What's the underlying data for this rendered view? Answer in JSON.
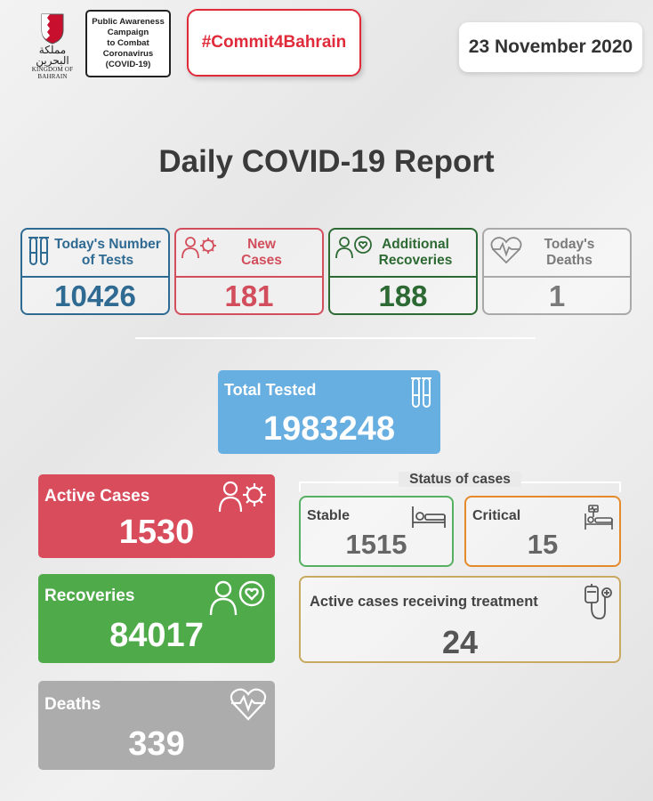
{
  "header": {
    "emblem_arabic": "مملكة البحرين",
    "emblem_english": "KINGDOM OF BAHRAIN",
    "campaign_text": "Public Awareness\nCampaign\nto Combat\nCoronavirus\n(COVID-19)",
    "hashtag": "#Commit4Bahrain",
    "date": "23 November 2020"
  },
  "title": "Daily COVID-19 Report",
  "daily": {
    "tests": {
      "label": "Today's Number\nof Tests",
      "value": "10426",
      "color": "#2e6a92",
      "icon": "test-tubes-icon"
    },
    "new_cases": {
      "label": "New\nCases",
      "value": "181",
      "color": "#d34e5c",
      "icon": "person-virus-icon"
    },
    "recoveries": {
      "label": "Additional\nRecoveries",
      "value": "188",
      "color": "#2d6a33",
      "icon": "person-heart-icon"
    },
    "deaths": {
      "label": "Today's\nDeaths",
      "value": "1",
      "color": "#7a7a7a",
      "icon": "heartbeat-icon"
    }
  },
  "total_tested": {
    "label": "Total Tested",
    "value": "1983248",
    "color": "#67aee1"
  },
  "active_cases": {
    "label": "Active Cases",
    "value": "1530",
    "color": "#d84c5c"
  },
  "recoveries": {
    "label": "Recoveries",
    "value": "84017",
    "color": "#4faa4a"
  },
  "deaths": {
    "label": "Deaths",
    "value": "339",
    "color": "#acacac"
  },
  "status": {
    "title": "Status of cases",
    "stable": {
      "label": "Stable",
      "value": "1515",
      "color": "#57b061"
    },
    "critical": {
      "label": "Critical",
      "value": "15",
      "color": "#e58a2a"
    },
    "treatment": {
      "label": "Active cases receiving treatment",
      "value": "24",
      "color": "#c9a85f"
    }
  }
}
